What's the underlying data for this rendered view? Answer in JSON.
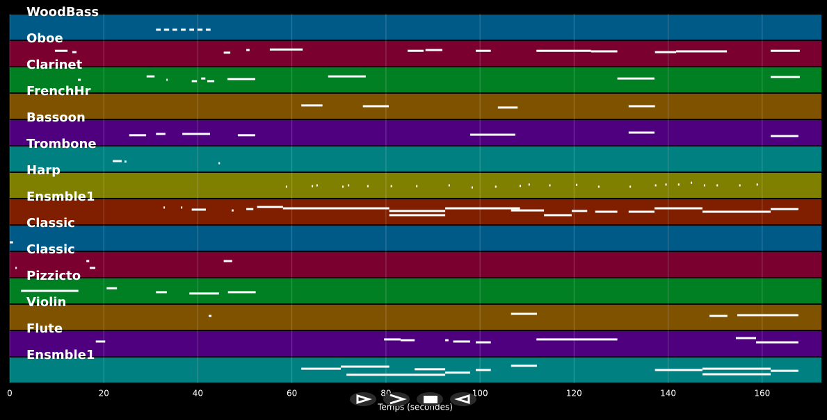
{
  "chart_data": {
    "type": "pianoroll",
    "xlabel": "Temps (secondes)",
    "xlim": [
      0,
      172.6
    ],
    "xticks": [
      0,
      20,
      40,
      60,
      80,
      100,
      120,
      140,
      160
    ],
    "grid": true,
    "tracks": [
      {
        "name": "WoodBass",
        "color": "#005a87",
        "notes": [
          [
            31.1,
            32.1,
            0.6
          ],
          [
            32.8,
            33.9,
            0.6
          ],
          [
            34.6,
            35.6,
            0.6
          ],
          [
            36.4,
            37.4,
            0.6
          ],
          [
            38.2,
            39.2,
            0.6
          ],
          [
            39.9,
            41.0,
            0.6
          ],
          [
            41.7,
            42.7,
            0.6
          ]
        ]
      },
      {
        "name": "Oboe",
        "color": "#7a0030",
        "notes": [
          [
            9.6,
            12.3,
            0.4
          ],
          [
            13.3,
            14.2,
            0.45
          ],
          [
            45.5,
            46.9,
            0.47
          ],
          [
            50.3,
            51.0,
            0.37
          ],
          [
            55.3,
            62.3,
            0.35
          ],
          [
            84.6,
            88.0,
            0.4
          ],
          [
            88.4,
            92.0,
            0.37
          ],
          [
            99.1,
            102.3,
            0.4
          ],
          [
            112.0,
            123.6,
            0.4
          ],
          [
            123.6,
            129.2,
            0.42
          ],
          [
            137.2,
            141.7,
            0.45
          ],
          [
            141.7,
            152.5,
            0.42
          ],
          [
            161.8,
            168.0,
            0.4
          ]
        ]
      },
      {
        "name": "Clarinet",
        "color": "#007f23",
        "notes": [
          [
            14.5,
            15.1,
            0.5
          ],
          [
            29.1,
            30.8,
            0.37
          ],
          [
            33.3,
            33.6,
            0.5
          ],
          [
            38.7,
            39.8,
            0.55
          ],
          [
            40.7,
            41.6,
            0.45
          ],
          [
            42.0,
            43.5,
            0.55
          ],
          [
            46.3,
            52.2,
            0.47
          ],
          [
            67.7,
            75.7,
            0.37
          ],
          [
            129.2,
            137.1,
            0.45
          ],
          [
            161.8,
            168.0,
            0.39
          ]
        ]
      },
      {
        "name": "FrenchHr",
        "color": "#7f5200",
        "notes": [
          [
            62.0,
            66.5,
            0.47
          ],
          [
            75.1,
            80.6,
            0.5
          ],
          [
            103.8,
            108.0,
            0.55
          ],
          [
            131.6,
            137.2,
            0.5
          ]
        ]
      },
      {
        "name": "Bassoon",
        "color": "#4f007f",
        "notes": [
          [
            25.4,
            29.0,
            0.6
          ],
          [
            31.1,
            33.1,
            0.55
          ],
          [
            36.7,
            42.6,
            0.55
          ],
          [
            48.5,
            52.2,
            0.6
          ],
          [
            97.9,
            102.5,
            0.58
          ],
          [
            102.5,
            107.5,
            0.58
          ],
          [
            131.6,
            137.1,
            0.5
          ],
          [
            161.8,
            167.7,
            0.63
          ]
        ]
      },
      {
        "name": "Trombone",
        "color": "#008080",
        "notes": [
          [
            21.9,
            23.8,
            0.58
          ],
          [
            24.4,
            24.8,
            0.6
          ],
          [
            44.4,
            44.7,
            0.66
          ]
        ]
      },
      {
        "name": "Harp",
        "color": "#808000",
        "notes": [
          [
            58.7,
            59.0,
            0.55
          ],
          [
            64.2,
            64.5,
            0.53
          ],
          [
            65.2,
            65.5,
            0.5
          ],
          [
            70.7,
            71.0,
            0.55
          ],
          [
            71.9,
            72.2,
            0.5
          ],
          [
            76.0,
            76.3,
            0.53
          ],
          [
            81.0,
            81.3,
            0.53
          ],
          [
            86.4,
            86.7,
            0.53
          ],
          [
            93.3,
            93.6,
            0.5
          ],
          [
            98.2,
            98.5,
            0.58
          ],
          [
            103.2,
            103.5,
            0.55
          ],
          [
            108.4,
            108.7,
            0.52
          ],
          [
            110.3,
            110.6,
            0.47
          ],
          [
            114.7,
            115.0,
            0.5
          ],
          [
            120.4,
            120.7,
            0.48
          ],
          [
            125.1,
            125.4,
            0.55
          ],
          [
            131.8,
            132.1,
            0.55
          ],
          [
            137.2,
            137.5,
            0.5
          ],
          [
            139.4,
            139.7,
            0.47
          ],
          [
            142.1,
            142.4,
            0.47
          ],
          [
            144.8,
            145.1,
            0.4
          ],
          [
            147.6,
            147.9,
            0.5
          ],
          [
            150.3,
            150.6,
            0.5
          ],
          [
            155.1,
            155.4,
            0.5
          ],
          [
            158.8,
            159.1,
            0.47
          ]
        ]
      },
      {
        "name": "Ensmble1",
        "color": "#7f1f00",
        "notes": [
          [
            32.7,
            33.0,
            0.34
          ],
          [
            36.4,
            36.7,
            0.34
          ],
          [
            38.7,
            41.7,
            0.42
          ],
          [
            47.2,
            47.6,
            0.45
          ],
          [
            50.3,
            51.8,
            0.4
          ],
          [
            52.6,
            58.1,
            0.32
          ],
          [
            58.1,
            80.7,
            0.37
          ],
          [
            80.7,
            92.6,
            0.47
          ],
          [
            80.7,
            92.6,
            0.63
          ],
          [
            92.6,
            108.5,
            0.37
          ],
          [
            106.6,
            113.6,
            0.45
          ],
          [
            113.6,
            119.5,
            0.63
          ],
          [
            119.5,
            122.8,
            0.47
          ],
          [
            124.5,
            129.2,
            0.5
          ],
          [
            131.6,
            137.1,
            0.5
          ],
          [
            137.1,
            147.3,
            0.37
          ],
          [
            147.3,
            161.8,
            0.5
          ],
          [
            161.8,
            167.7,
            0.4
          ]
        ]
      },
      {
        "name": "Classic",
        "color": "#005a87",
        "notes": [
          [
            0.0,
            0.7,
            0.66
          ]
        ]
      },
      {
        "name": "Classic",
        "color": "#7a0030",
        "notes": [
          [
            1.2,
            1.5,
            0.63
          ],
          [
            16.3,
            16.9,
            0.37
          ],
          [
            17.0,
            18.2,
            0.63
          ],
          [
            45.5,
            47.3,
            0.37
          ]
        ]
      },
      {
        "name": "Pizzicto",
        "color": "#007f23",
        "notes": [
          [
            2.4,
            14.6,
            0.5
          ],
          [
            20.6,
            22.8,
            0.4
          ],
          [
            31.1,
            33.4,
            0.55
          ],
          [
            38.2,
            44.5,
            0.6
          ],
          [
            46.4,
            52.3,
            0.55
          ]
        ]
      },
      {
        "name": "Violin",
        "color": "#7f5200",
        "notes": [
          [
            42.3,
            42.9,
            0.45
          ],
          [
            106.6,
            112.1,
            0.37
          ],
          [
            148.8,
            152.6,
            0.45
          ],
          [
            154.7,
            167.7,
            0.42
          ]
        ]
      },
      {
        "name": "Flute",
        "color": "#4f007f",
        "notes": [
          [
            18.3,
            20.3,
            0.42
          ],
          [
            79.6,
            83.1,
            0.34
          ],
          [
            83.1,
            86.1,
            0.37
          ],
          [
            92.6,
            93.3,
            0.37
          ],
          [
            94.3,
            97.9,
            0.42
          ],
          [
            99.1,
            102.3,
            0.45
          ],
          [
            112.0,
            129.2,
            0.34
          ],
          [
            154.4,
            158.7,
            0.29
          ],
          [
            158.7,
            167.7,
            0.45
          ]
        ]
      },
      {
        "name": "Ensmble1",
        "color": "#008080",
        "notes": [
          [
            62.0,
            70.4,
            0.45
          ],
          [
            70.4,
            80.7,
            0.37
          ],
          [
            71.6,
            92.6,
            0.68
          ],
          [
            86.1,
            92.6,
            0.47
          ],
          [
            92.6,
            97.9,
            0.6
          ],
          [
            99.1,
            102.3,
            0.5
          ],
          [
            106.6,
            112.1,
            0.34
          ],
          [
            137.2,
            147.3,
            0.5
          ],
          [
            147.3,
            161.8,
            0.45
          ],
          [
            147.3,
            161.8,
            0.66
          ],
          [
            161.8,
            167.7,
            0.53
          ]
        ]
      }
    ]
  }
}
